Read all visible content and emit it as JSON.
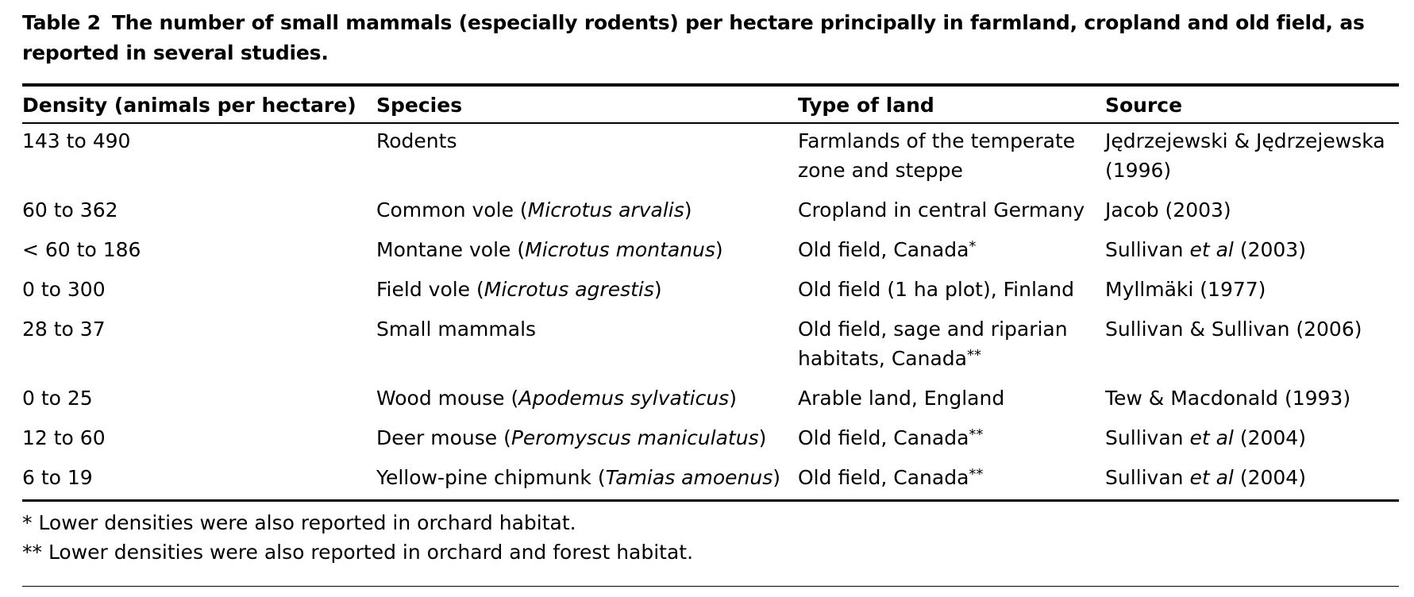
{
  "caption": {
    "label": "Table 2",
    "text": "The number of small mammals (especially rodents) per hectare principally in farmland, cropland and old field, as reported in several studies."
  },
  "table": {
    "headers": [
      "Density (animals per hectare)",
      "Species",
      "Type of land",
      "Source"
    ],
    "rows": [
      {
        "density": "143 to 490",
        "species_common": "Rodents",
        "species_latin": "",
        "land": "Farmlands of the temperate zone and steppe",
        "land_mark": "",
        "source_pre": "Jędrzejewski & Jędrzejewska (1996)",
        "source_etal": "",
        "source_year": ""
      },
      {
        "density": "60 to 362",
        "species_common": "Common vole (",
        "species_latin": "Microtus arvalis",
        "land": "Cropland in central Germany",
        "land_mark": "",
        "source_pre": "Jacob (2003)",
        "source_etal": "",
        "source_year": ""
      },
      {
        "density": "< 60 to 186",
        "species_common": "Montane vole (",
        "species_latin": "Microtus montanus",
        "land": "Old field, Canada",
        "land_mark": "*",
        "source_pre": "Sullivan ",
        "source_etal": "et al",
        "source_year": " (2003)"
      },
      {
        "density": "0 to 300",
        "species_common": "Field vole (",
        "species_latin": "Microtus agrestis",
        "land": "Old field (1 ha plot), Finland",
        "land_mark": "",
        "source_pre": "Myllmäki (1977)",
        "source_etal": "",
        "source_year": ""
      },
      {
        "density": "28 to 37",
        "species_common": "Small mammals",
        "species_latin": "",
        "land": "Old field, sage and riparian habitats, Canada",
        "land_mark": "**",
        "source_pre": "Sullivan & Sullivan (2006)",
        "source_etal": "",
        "source_year": ""
      },
      {
        "density": "0 to 25",
        "species_common": "Wood mouse (",
        "species_latin": "Apodemus sylvaticus",
        "land": "Arable land, England",
        "land_mark": "",
        "source_pre": "Tew & Macdonald (1993)",
        "source_etal": "",
        "source_year": ""
      },
      {
        "density": "12 to 60",
        "species_common": "Deer mouse (",
        "species_latin": "Peromyscus maniculatus",
        "land": "Old field, Canada",
        "land_mark": "**",
        "source_pre": "Sullivan ",
        "source_etal": "et al",
        "source_year": " (2004)"
      },
      {
        "density": "6 to 19",
        "species_common": "Yellow-pine chipmunk (",
        "species_latin": "Tamias amoenus",
        "land": "Old field, Canada",
        "land_mark": "**",
        "source_pre": "Sullivan ",
        "source_etal": "et al",
        "source_year": " (2004)"
      }
    ],
    "close_paren": ")"
  },
  "notes": [
    "* Lower densities were also reported in orchard habitat.",
    "** Lower densities were also reported in orchard and forest habitat."
  ]
}
